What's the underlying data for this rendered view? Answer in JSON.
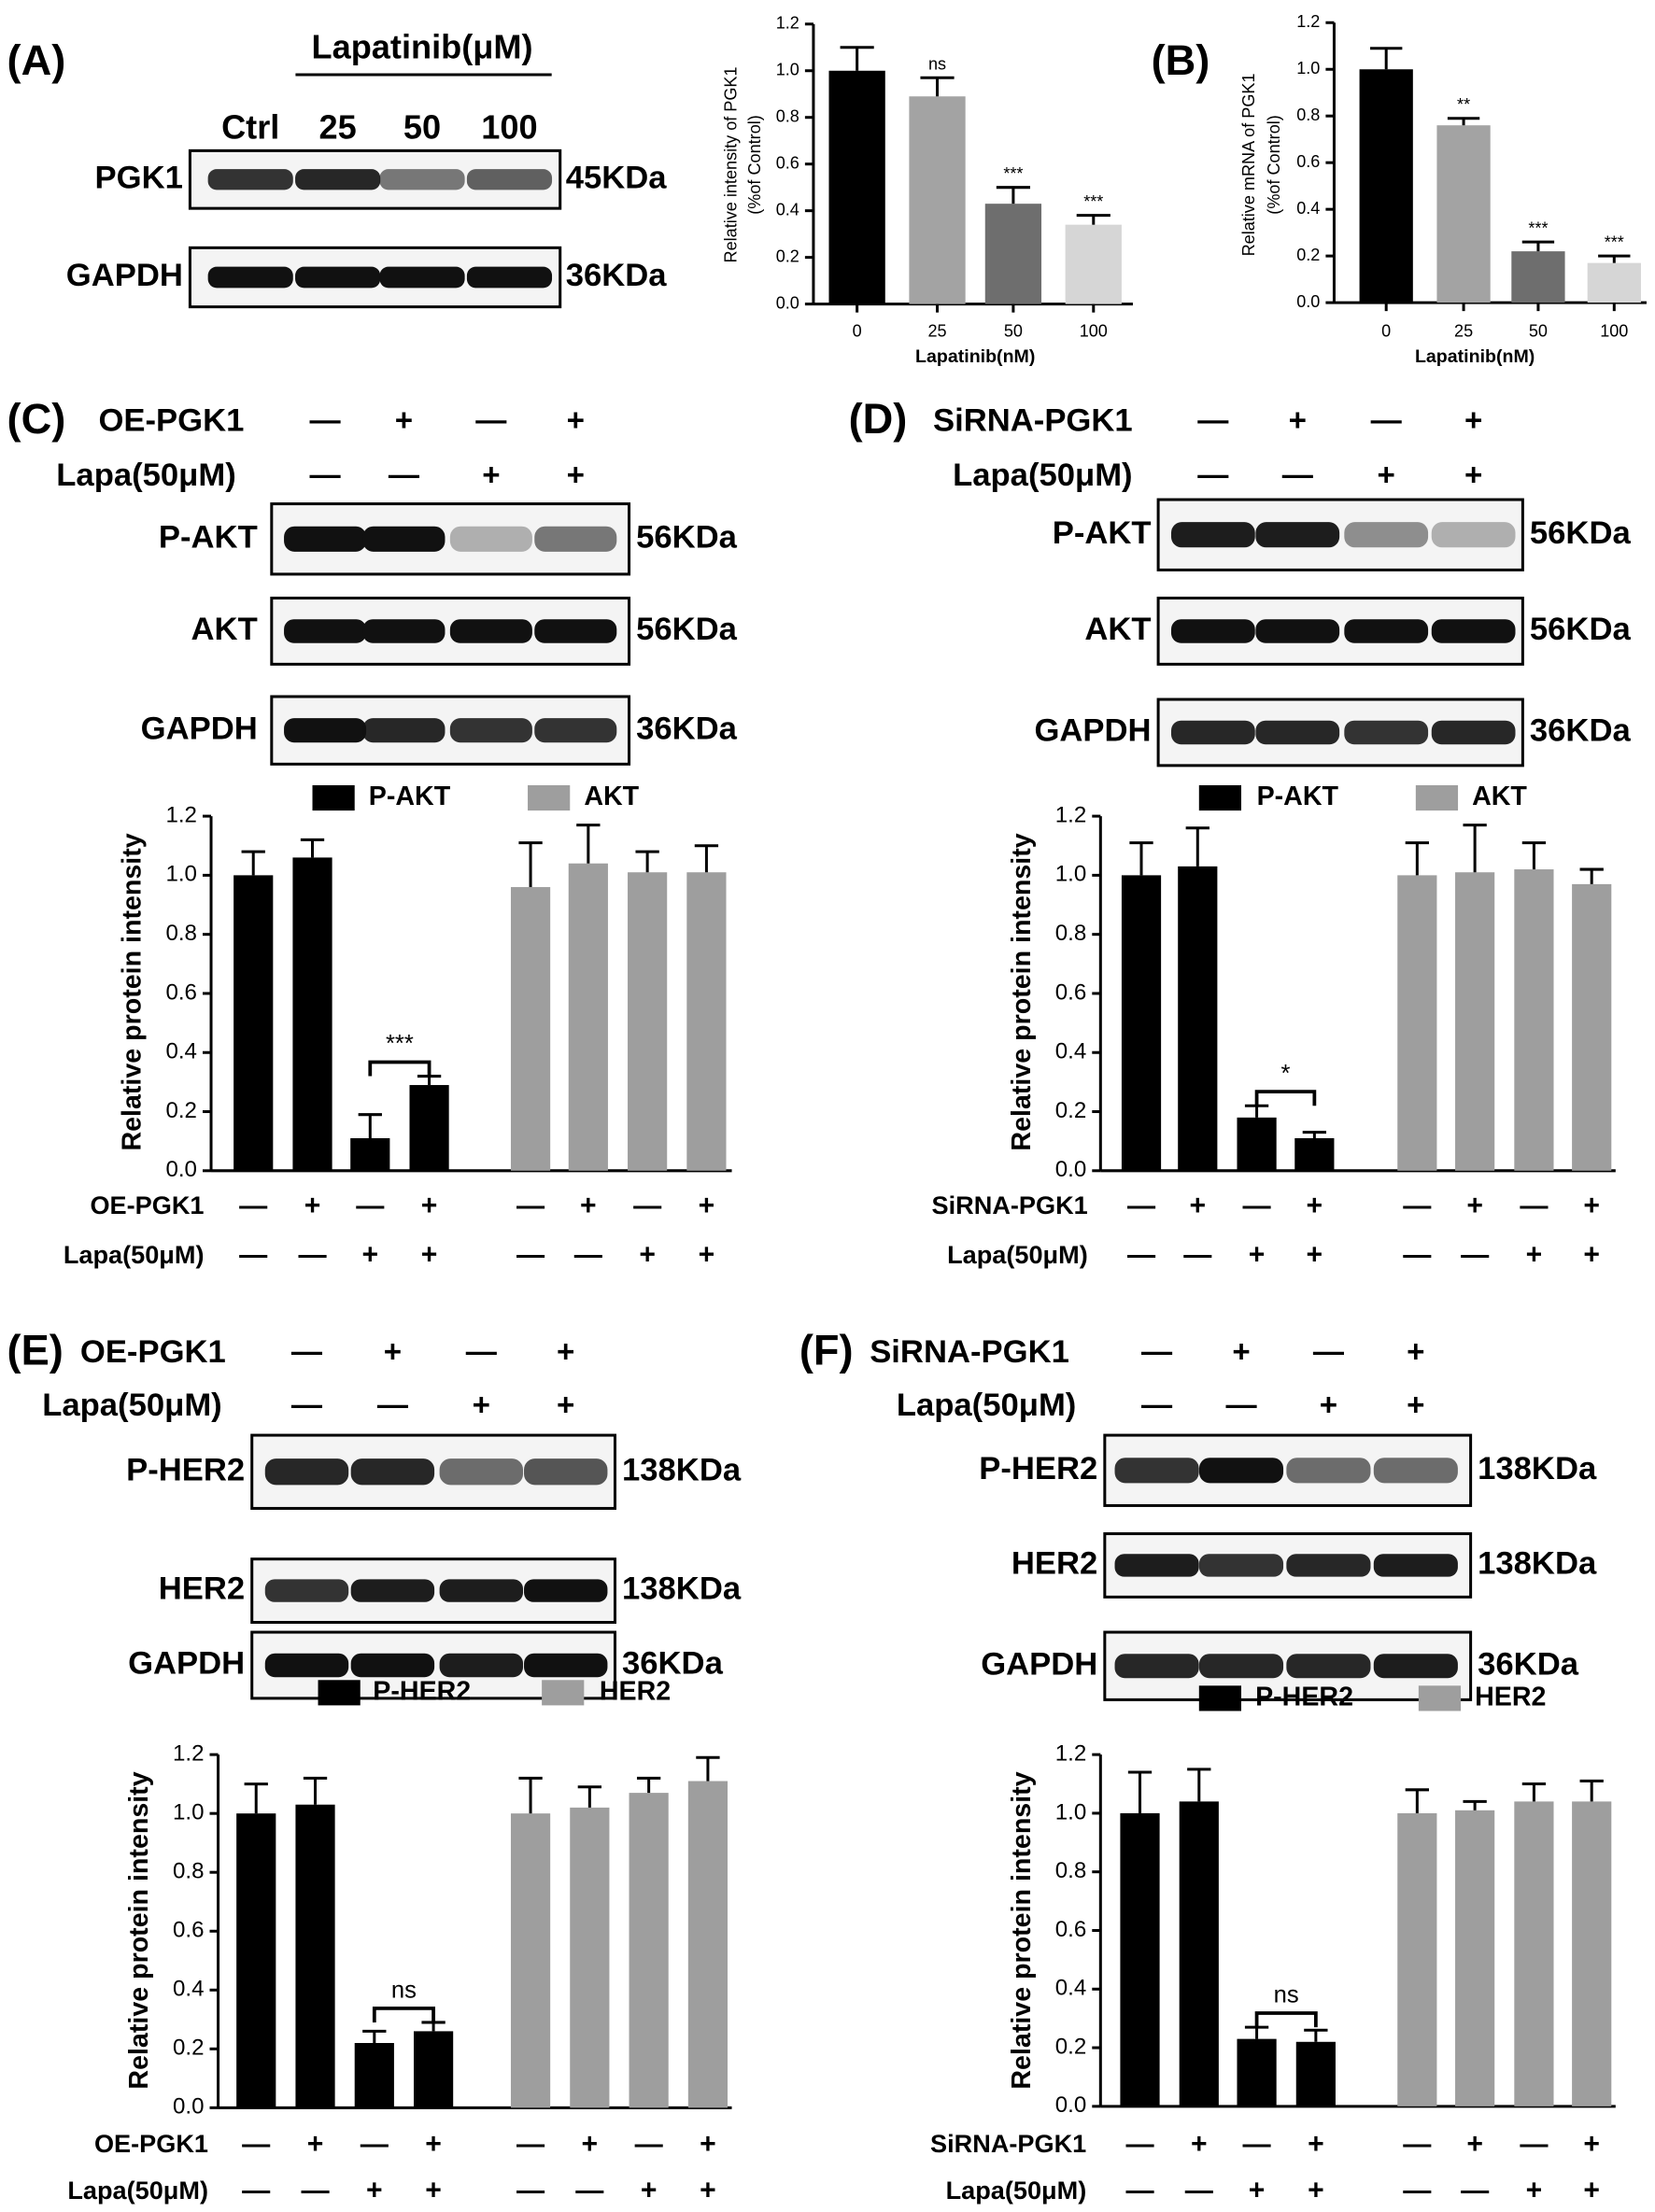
{
  "panel_labels": [
    "(A)",
    "(B)",
    "(C)",
    "(D)",
    "(E)",
    "(F)"
  ],
  "blots": [
    {
      "header": "Lapatinib(μM)",
      "lanes": [
        "Ctrl",
        "25",
        "50",
        "100"
      ],
      "rows": [
        {
          "name": "PGK1",
          "size": "45KDa"
        },
        {
          "name": "GAPDH",
          "size": "36KDa"
        }
      ]
    },
    {
      "conditions": [
        {
          "label": "OE-PGK1",
          "signs": [
            "—",
            "+",
            "—",
            "+"
          ]
        },
        {
          "label": "Lapa(50μM)",
          "signs": [
            "—",
            "—",
            "+",
            "+"
          ]
        }
      ],
      "rows": [
        {
          "name": "P-AKT",
          "size": "56KDa"
        },
        {
          "name": "AKT",
          "size": "56KDa"
        },
        {
          "name": "GAPDH",
          "size": "36KDa"
        }
      ]
    },
    {
      "conditions": [
        {
          "label": "SiRNA-PGK1",
          "signs": [
            "—",
            "+",
            "—",
            "+"
          ]
        },
        {
          "label": "Lapa(50μM)",
          "signs": [
            "—",
            "—",
            "+",
            "+"
          ]
        }
      ],
      "rows": [
        {
          "name": "P-AKT",
          "size": "56KDa"
        },
        {
          "name": "AKT",
          "size": "56KDa"
        },
        {
          "name": "GAPDH",
          "size": "36KDa"
        }
      ]
    },
    {
      "conditions": [
        {
          "label": "OE-PGK1",
          "signs": [
            "—",
            "+",
            "—",
            "+"
          ]
        },
        {
          "label": "Lapa(50μM)",
          "signs": [
            "—",
            "—",
            "+",
            "+"
          ]
        }
      ],
      "rows": [
        {
          "name": "P-HER2",
          "size": "138KDa"
        },
        {
          "name": "HER2",
          "size": "138KDa"
        },
        {
          "name": "GAPDH",
          "size": "36KDa"
        }
      ]
    },
    {
      "conditions": [
        {
          "label": "SiRNA-PGK1",
          "signs": [
            "—",
            "+",
            "—",
            "+"
          ]
        },
        {
          "label": "Lapa(50μM)",
          "signs": [
            "—",
            "—",
            "+",
            "+"
          ]
        }
      ],
      "rows": [
        {
          "name": "P-HER2",
          "size": "138KDa"
        },
        {
          "name": "HER2",
          "size": "138KDa"
        },
        {
          "name": "GAPDH",
          "size": "36KDa"
        }
      ]
    }
  ],
  "chart_data": [
    {
      "type": "bar",
      "ylabel": [
        "Relative intensity of PGK1",
        "(%of Control)"
      ],
      "xlabel": "Lapatinib(nM)",
      "categories": [
        "0",
        "25",
        "50",
        "100"
      ],
      "values": [
        1.0,
        0.89,
        0.43,
        0.34
      ],
      "errors": [
        0.1,
        0.08,
        0.07,
        0.04
      ],
      "colors": [
        "#000000",
        "#a3a3a3",
        "#6e6e6e",
        "#d6d6d6"
      ],
      "annotations": [
        null,
        "ns",
        "***",
        "***"
      ],
      "ylim": [
        0,
        1.2
      ],
      "yticks": [
        {
          "value": 0,
          "label": "0.0"
        },
        0.2,
        0.4,
        0.6,
        0.8,
        {
          "value": 1,
          "label": "1.0"
        },
        1.2
      ]
    },
    {
      "type": "bar",
      "ylabel": [
        "Relative mRNA of PGK1",
        "(%of Control)"
      ],
      "xlabel": "Lapatinib(nM)",
      "categories": [
        "0",
        "25",
        "50",
        "100"
      ],
      "values": [
        1.0,
        0.76,
        0.22,
        0.17
      ],
      "errors": [
        0.09,
        0.03,
        0.04,
        0.03
      ],
      "colors": [
        "#000000",
        "#a3a3a3",
        "#6e6e6e",
        "#d6d6d6"
      ],
      "annotations": [
        null,
        "**",
        "***",
        "***"
      ],
      "ylim": [
        0,
        1.2
      ],
      "yticks": [
        {
          "value": 0,
          "label": "0.0"
        },
        0.2,
        0.4,
        0.6,
        0.8,
        {
          "value": 1,
          "label": "1.0"
        },
        1.2
      ]
    },
    {
      "type": "grouped_bar",
      "ylabel": "Relative protein intensity",
      "series": [
        {
          "name": "P-AKT",
          "color": "#000000",
          "values": [
            1.0,
            1.06,
            0.11,
            0.29
          ],
          "errors": [
            0.08,
            0.06,
            0.08,
            0.03
          ]
        },
        {
          "name": "AKT",
          "color": "#9e9e9e",
          "values": [
            0.96,
            1.04,
            1.01,
            1.01
          ],
          "errors": [
            0.15,
            0.13,
            0.07,
            0.09
          ]
        }
      ],
      "condition_rows": [
        {
          "label": "OE-PGK1",
          "signs": [
            "—",
            "+",
            "—",
            "+",
            "—",
            "+",
            "—",
            "+"
          ]
        },
        {
          "label": "Lapa(50μM)",
          "signs": [
            "—",
            "—",
            "+",
            "+",
            "—",
            "—",
            "+",
            "+"
          ]
        }
      ],
      "annotation": "***",
      "ylim": [
        0,
        1.2
      ],
      "yticks": [
        {
          "value": 0,
          "label": "0.0"
        },
        0.2,
        0.4,
        0.6,
        0.8,
        {
          "value": 1,
          "label": "1.0"
        },
        1.2
      ]
    },
    {
      "type": "grouped_bar",
      "ylabel": "Relative protein intensity",
      "series": [
        {
          "name": "P-AKT",
          "color": "#000000",
          "values": [
            1.0,
            1.03,
            0.18,
            0.11
          ],
          "errors": [
            0.11,
            0.13,
            0.04,
            0.02
          ]
        },
        {
          "name": "AKT",
          "color": "#9e9e9e",
          "values": [
            1.0,
            1.01,
            1.02,
            0.97
          ],
          "errors": [
            0.11,
            0.16,
            0.09,
            0.05
          ]
        }
      ],
      "condition_rows": [
        {
          "label": "SiRNA-PGK1",
          "signs": [
            "—",
            "+",
            "—",
            "+",
            "—",
            "+",
            "—",
            "+"
          ]
        },
        {
          "label": "Lapa(50μM)",
          "signs": [
            "—",
            "—",
            "+",
            "+",
            "—",
            "—",
            "+",
            "+"
          ]
        }
      ],
      "annotation": "*",
      "ylim": [
        0,
        1.2
      ],
      "yticks": [
        {
          "value": 0,
          "label": "0.0"
        },
        0.2,
        0.4,
        0.6,
        0.8,
        {
          "value": 1,
          "label": "1.0"
        },
        1.2
      ]
    },
    {
      "type": "grouped_bar",
      "ylabel": "Relative protein intensity",
      "series": [
        {
          "name": "P-HER2",
          "color": "#000000",
          "values": [
            1.0,
            1.03,
            0.22,
            0.26
          ],
          "errors": [
            0.1,
            0.09,
            0.04,
            0.03
          ]
        },
        {
          "name": "HER2",
          "color": "#9e9e9e",
          "values": [
            1.0,
            1.02,
            1.07,
            1.11
          ],
          "errors": [
            0.12,
            0.07,
            0.05,
            0.08
          ]
        }
      ],
      "condition_rows": [
        {
          "label": "OE-PGK1",
          "signs": [
            "—",
            "+",
            "—",
            "+",
            "—",
            "+",
            "—",
            "+"
          ]
        },
        {
          "label": "Lapa(50μM)",
          "signs": [
            "—",
            "—",
            "+",
            "+",
            "—",
            "—",
            "+",
            "+"
          ]
        }
      ],
      "annotation": "ns",
      "ylim": [
        0,
        1.2
      ],
      "yticks": [
        {
          "value": 0,
          "label": "0.0"
        },
        0.2,
        0.4,
        0.6,
        0.8,
        {
          "value": 1,
          "label": "1.0"
        },
        1.2
      ]
    },
    {
      "type": "grouped_bar",
      "ylabel": "Relative protein intensity",
      "series": [
        {
          "name": "P-HER2",
          "color": "#000000",
          "values": [
            1.0,
            1.04,
            0.23,
            0.22
          ],
          "errors": [
            0.14,
            0.11,
            0.04,
            0.04
          ]
        },
        {
          "name": "HER2",
          "color": "#9e9e9e",
          "values": [
            1.0,
            1.01,
            1.04,
            1.04
          ],
          "errors": [
            0.08,
            0.03,
            0.06,
            0.07
          ]
        }
      ],
      "condition_rows": [
        {
          "label": "SiRNA-PGK1",
          "signs": [
            "—",
            "+",
            "—",
            "+",
            "—",
            "+",
            "—",
            "+"
          ]
        },
        {
          "label": "Lapa(50μM)",
          "signs": [
            "—",
            "—",
            "+",
            "+",
            "—",
            "—",
            "+",
            "+"
          ]
        }
      ],
      "annotation": "ns",
      "ylim": [
        0,
        1.2
      ],
      "yticks": [
        {
          "value": 0,
          "label": "0.0"
        },
        0.2,
        0.4,
        0.6,
        0.8,
        {
          "value": 1,
          "label": "1.0"
        },
        1.2
      ]
    }
  ]
}
